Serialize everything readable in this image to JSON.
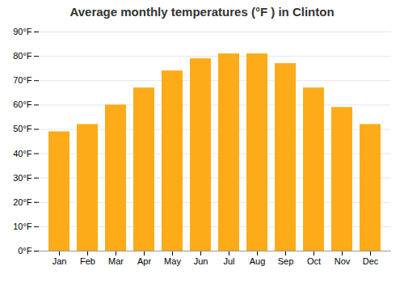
{
  "chart_data": {
    "type": "bar",
    "title": "Average monthly temperatures (°F ) in Clinton",
    "categories": [
      "Jan",
      "Feb",
      "Mar",
      "Apr",
      "May",
      "Jun",
      "Jul",
      "Aug",
      "Sep",
      "Oct",
      "Nov",
      "Dec"
    ],
    "values": [
      49,
      52,
      60,
      67,
      74,
      79,
      81,
      81,
      77,
      67,
      59,
      52
    ],
    "color": "#FDAB18",
    "ylim": [
      0,
      90
    ],
    "yticks": [
      {
        "value": 0,
        "label": "0°F"
      },
      {
        "value": 10,
        "label": "10°F"
      },
      {
        "value": 20,
        "label": "20°F"
      },
      {
        "value": 30,
        "label": "30°F"
      },
      {
        "value": 40,
        "label": "40°F"
      },
      {
        "value": 50,
        "label": "50°F"
      },
      {
        "value": 60,
        "label": "60°F"
      },
      {
        "value": 70,
        "label": "70°F"
      },
      {
        "value": 80,
        "label": "80°F"
      },
      {
        "value": 90,
        "label": "90°F"
      }
    ],
    "grid": true
  }
}
